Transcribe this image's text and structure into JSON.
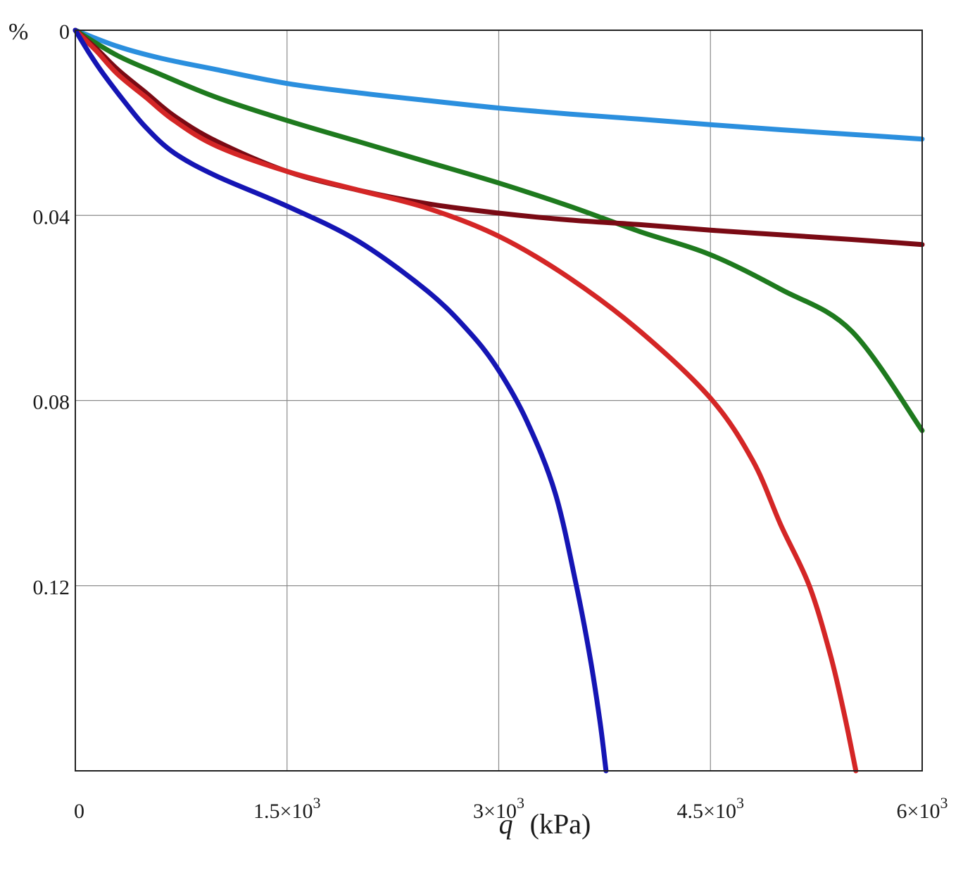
{
  "chart_data": {
    "type": "line",
    "title": "",
    "ylabel_unit": "%",
    "xlabel": {
      "symbol": "q",
      "unit": "(kPa)"
    },
    "xlim": [
      0,
      6000
    ],
    "ylim": [
      0,
      0.16
    ],
    "y_inverted": true,
    "grid": true,
    "x_ticks": [
      {
        "value": 0,
        "label": "0",
        "exp": ""
      },
      {
        "value": 1500,
        "label": "1.5×10",
        "exp": "3"
      },
      {
        "value": 3000,
        "label": "3×10",
        "exp": "3"
      },
      {
        "value": 4500,
        "label": "4.5×10",
        "exp": "3"
      },
      {
        "value": 6000,
        "label": "6×10",
        "exp": "3"
      }
    ],
    "y_ticks": [
      {
        "value": 0,
        "label": "0"
      },
      {
        "value": 0.04,
        "label": "0.04"
      },
      {
        "value": 0.08,
        "label": "0.08"
      },
      {
        "value": 0.12,
        "label": "0.12"
      }
    ],
    "series": [
      {
        "color": "#2b8fde",
        "x": [
          0,
          300,
          600,
          1000,
          1500,
          2000,
          2500,
          3000,
          3500,
          4000,
          4500,
          5000,
          5500,
          6000
        ],
        "y": [
          0,
          0.0035,
          0.006,
          0.0085,
          0.0115,
          0.0135,
          0.0152,
          0.0168,
          0.0181,
          0.0192,
          0.0204,
          0.0215,
          0.0225,
          0.0235
        ]
      },
      {
        "color": "#1e7a1e",
        "x": [
          0,
          300,
          600,
          1000,
          1500,
          2000,
          2500,
          3000,
          3500,
          4000,
          4500,
          5000,
          5500,
          6000
        ],
        "y": [
          0,
          0.0055,
          0.0095,
          0.0145,
          0.0195,
          0.024,
          0.0285,
          0.033,
          0.038,
          0.0435,
          0.0485,
          0.056,
          0.065,
          0.0865
        ]
      },
      {
        "color": "#7a0a14",
        "x": [
          0,
          150,
          300,
          500,
          700,
          1000,
          1500,
          2000,
          2500,
          3000,
          3500,
          4000,
          4500,
          5000,
          5500,
          6000
        ],
        "y": [
          0,
          0.004,
          0.0085,
          0.0135,
          0.0185,
          0.024,
          0.0305,
          0.0345,
          0.0375,
          0.0395,
          0.041,
          0.042,
          0.0432,
          0.0442,
          0.0452,
          0.0463
        ]
      },
      {
        "color": "#d42626",
        "x": [
          0,
          150,
          300,
          500,
          700,
          1000,
          1500,
          2000,
          2500,
          3000,
          3500,
          4000,
          4500,
          4800,
          5000,
          5200,
          5350,
          5450,
          5530
        ],
        "y": [
          0,
          0.0045,
          0.0095,
          0.0145,
          0.0195,
          0.025,
          0.0305,
          0.0345,
          0.0385,
          0.0445,
          0.0535,
          0.065,
          0.0795,
          0.093,
          0.107,
          0.12,
          0.135,
          0.148,
          0.16
        ]
      },
      {
        "color": "#1515b4",
        "x": [
          0,
          100,
          200,
          350,
          500,
          700,
          1000,
          1500,
          2000,
          2500,
          2800,
          3000,
          3200,
          3400,
          3550,
          3650,
          3720,
          3760
        ],
        "y": [
          0,
          0.005,
          0.0095,
          0.0155,
          0.021,
          0.0265,
          0.0315,
          0.038,
          0.0455,
          0.0565,
          0.0655,
          0.0735,
          0.0845,
          0.1,
          0.12,
          0.136,
          0.15,
          0.16
        ]
      }
    ]
  }
}
